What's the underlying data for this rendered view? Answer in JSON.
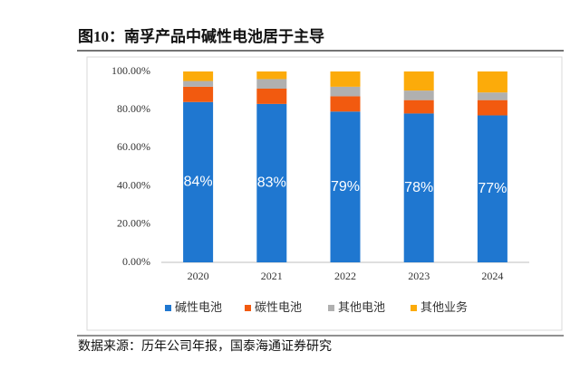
{
  "chart_data": {
    "type": "stacked-bar",
    "title": "图10：南孚产品中碱性电池居于主导",
    "source": "数据来源：历年公司年报，国泰海通证券研究",
    "categories": [
      "2020",
      "2021",
      "2022",
      "2023",
      "2024"
    ],
    "series": [
      {
        "name": "碱性电池",
        "color": "#1f77d0",
        "values": [
          84,
          83,
          79,
          78,
          77
        ],
        "value_labels": [
          "84%",
          "83%",
          "79%",
          "78%",
          "77%"
        ]
      },
      {
        "name": "碳性电池",
        "color": "#f25a0f",
        "values": [
          8,
          8,
          8,
          7,
          8
        ]
      },
      {
        "name": "其他电池",
        "color": "#b0b0b0",
        "values": [
          3,
          5,
          5,
          5,
          4
        ]
      },
      {
        "name": "其他业务",
        "color": "#fcab0a",
        "values": [
          5,
          4,
          8,
          10,
          11
        ]
      }
    ],
    "ylim": [
      0,
      100
    ],
    "yticks": [
      {
        "value": 0,
        "label": "0.00%"
      },
      {
        "value": 20,
        "label": "20.00%"
      },
      {
        "value": 40,
        "label": "40.00%"
      },
      {
        "value": 60,
        "label": "60.00%"
      },
      {
        "value": 80,
        "label": "80.00%"
      },
      {
        "value": 100,
        "label": "100.00%"
      }
    ],
    "legend": "bottom"
  }
}
